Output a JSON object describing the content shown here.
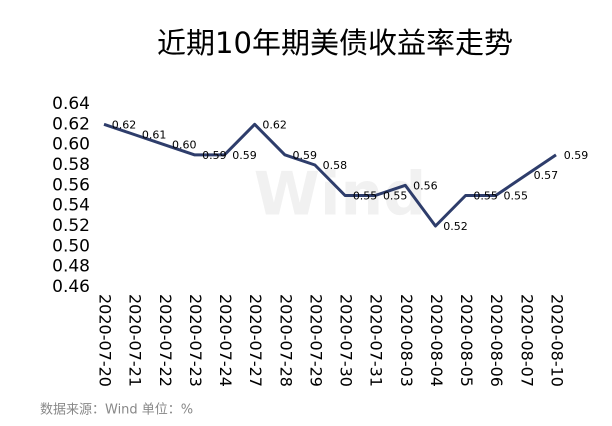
{
  "chart_data": {
    "type": "line",
    "title": "近期10年期美债收益率走势",
    "source": "数据来源：Wind   单位：%",
    "watermark": "Wind",
    "categories": [
      "2020-07-20",
      "2020-07-21",
      "2020-07-22",
      "2020-07-23",
      "2020-07-24",
      "2020-07-27",
      "2020-07-28",
      "2020-07-29",
      "2020-07-30",
      "2020-07-31",
      "2020-08-03",
      "2020-08-04",
      "2020-08-05",
      "2020-08-06",
      "2020-08-07",
      "2020-08-10"
    ],
    "series": [
      {
        "color": "#2e3d6b",
        "values": [
          0.62,
          0.61,
          0.6,
          0.59,
          0.59,
          0.62,
          0.59,
          0.58,
          0.55,
          0.55,
          0.56,
          0.52,
          0.55,
          0.55,
          0.57,
          0.59
        ],
        "value_labels": [
          "0.62",
          "0.61",
          "0.60",
          "0.59",
          "0.59",
          "0.62",
          "0.59",
          "0.58",
          "0.55",
          "0.55",
          "0.56",
          "0.52",
          "0.55",
          "0.55",
          "0.57",
          "0.59"
        ]
      }
    ],
    "ylim": [
      0.46,
      0.64
    ],
    "yticks": [
      0.46,
      0.48,
      {
        "value": 0.5,
        "label": "0.50"
      },
      0.52,
      0.54,
      0.56,
      0.58,
      {
        "value": 0.6,
        "label": "0.60"
      },
      0.62,
      0.64
    ],
    "grid": false
  }
}
